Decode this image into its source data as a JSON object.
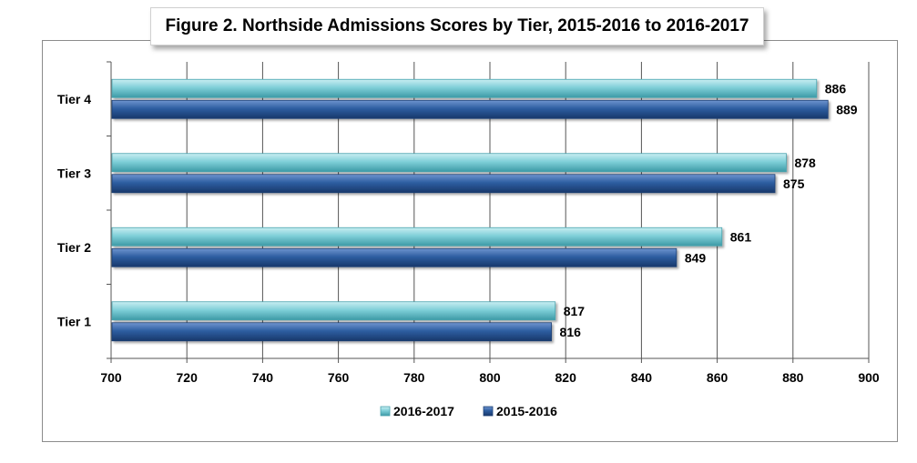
{
  "chart_data": {
    "type": "bar",
    "orientation": "horizontal",
    "title": "Figure 2. Northside Admissions Scores by Tier, 2015-2016 to 2016-2017",
    "categories": [
      "Tier 1",
      "Tier 2",
      "Tier 3",
      "Tier 4"
    ],
    "series": [
      {
        "name": "2016-2017",
        "values": [
          817,
          861,
          878,
          886
        ],
        "color": "#7fcfd8"
      },
      {
        "name": "2015-2016",
        "values": [
          816,
          849,
          875,
          889
        ],
        "color": "#2e5ea1"
      }
    ],
    "xlim": [
      700,
      900
    ],
    "xticks": [
      700,
      720,
      740,
      760,
      780,
      800,
      820,
      840,
      860,
      880,
      900
    ],
    "xtick_labels": [
      "700",
      "720",
      "740",
      "760",
      "780",
      "800",
      "820",
      "840",
      "860",
      "880",
      "900"
    ],
    "grid": true,
    "legend_position": "bottom"
  }
}
